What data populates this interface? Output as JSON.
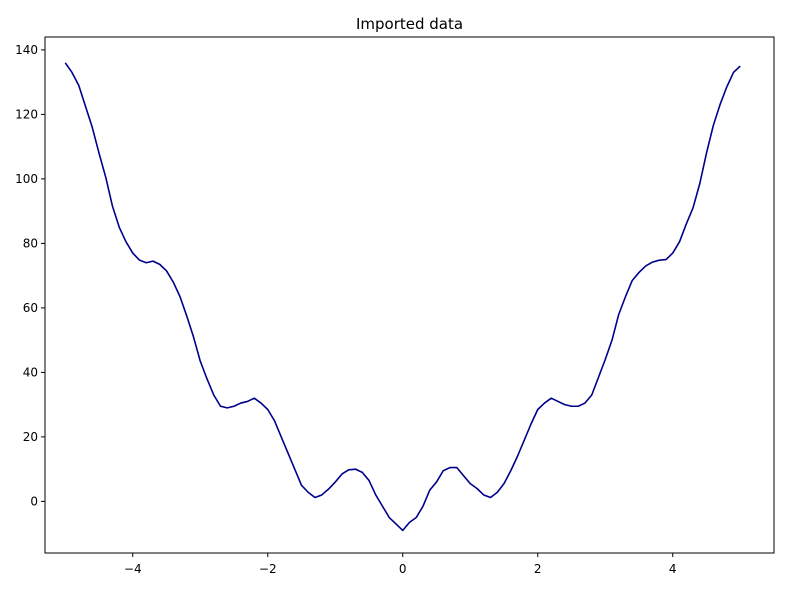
{
  "chart_data": {
    "type": "line",
    "title": "Imported data",
    "xlabel": "",
    "ylabel": "",
    "xlim": [
      -5.3,
      5.5
    ],
    "ylim": [
      -16,
      144
    ],
    "xticks": [
      -4,
      -2,
      0,
      2,
      4
    ],
    "yticks": [
      0,
      20,
      40,
      60,
      80,
      100,
      120,
      140
    ],
    "grid": false,
    "legend": "none",
    "series": [
      {
        "color": "#00008b",
        "x": [
          -5.0,
          -4.9,
          -4.8,
          -4.7,
          -4.6,
          -4.5,
          -4.4,
          -4.3,
          -4.2,
          -4.1,
          -4.0,
          -3.9,
          -3.8,
          -3.7,
          -3.6,
          -3.5,
          -3.4,
          -3.3,
          -3.2,
          -3.1,
          -3.0,
          -2.9,
          -2.8,
          -2.7,
          -2.6,
          -2.5,
          -2.4,
          -2.3,
          -2.2,
          -2.1,
          -2.0,
          -1.9,
          -1.8,
          -1.7,
          -1.6,
          -1.5,
          -1.4,
          -1.3,
          -1.2,
          -1.1,
          -1.0,
          -0.9,
          -0.8,
          -0.7,
          -0.6,
          -0.5,
          -0.4,
          -0.3,
          -0.2,
          -0.1,
          0.0,
          0.1,
          0.2,
          0.3,
          0.4,
          0.5,
          0.6,
          0.7,
          0.8,
          0.9,
          1.0,
          1.1,
          1.2,
          1.3,
          1.4,
          1.5,
          1.6,
          1.7,
          1.8,
          1.9,
          2.0,
          2.1,
          2.2,
          2.3,
          2.4,
          2.5,
          2.6,
          2.7,
          2.8,
          2.9,
          3.0,
          3.1,
          3.2,
          3.3,
          3.4,
          3.5,
          3.6,
          3.7,
          3.8,
          3.9,
          4.0,
          4.1,
          4.2,
          4.3,
          4.4,
          4.5,
          4.6,
          4.7,
          4.8,
          4.9,
          5.0
        ],
        "y": [
          136.0,
          133.0,
          129.0,
          122.5,
          116.0,
          108.0,
          100.5,
          91.5,
          85.0,
          80.5,
          77.0,
          74.8,
          74.0,
          74.5,
          73.5,
          71.5,
          68.0,
          63.5,
          57.5,
          51.0,
          43.5,
          38.0,
          33.0,
          29.5,
          29.0,
          29.5,
          30.5,
          31.0,
          32.0,
          30.5,
          28.5,
          25.0,
          20.0,
          15.0,
          10.0,
          5.0,
          2.8,
          1.2,
          2.0,
          3.8,
          6.0,
          8.5,
          9.8,
          10.0,
          9.0,
          6.5,
          2.0,
          -1.5,
          -5.0,
          -7.0,
          -9.0,
          -6.5,
          -5.0,
          -1.5,
          3.5,
          6.0,
          9.5,
          10.5,
          10.5,
          8.0,
          5.5,
          4.0,
          2.0,
          1.2,
          2.8,
          5.5,
          9.5,
          14.0,
          19.0,
          24.0,
          28.5,
          30.5,
          32.0,
          31.0,
          30.0,
          29.5,
          29.5,
          30.5,
          33.0,
          38.5,
          44.0,
          50.0,
          58.0,
          63.5,
          68.5,
          71.0,
          73.0,
          74.2,
          74.8,
          75.0,
          77.0,
          80.5,
          86.0,
          91.0,
          98.5,
          108.0,
          116.5,
          123.0,
          128.5,
          133.0,
          135.0
        ]
      }
    ]
  }
}
